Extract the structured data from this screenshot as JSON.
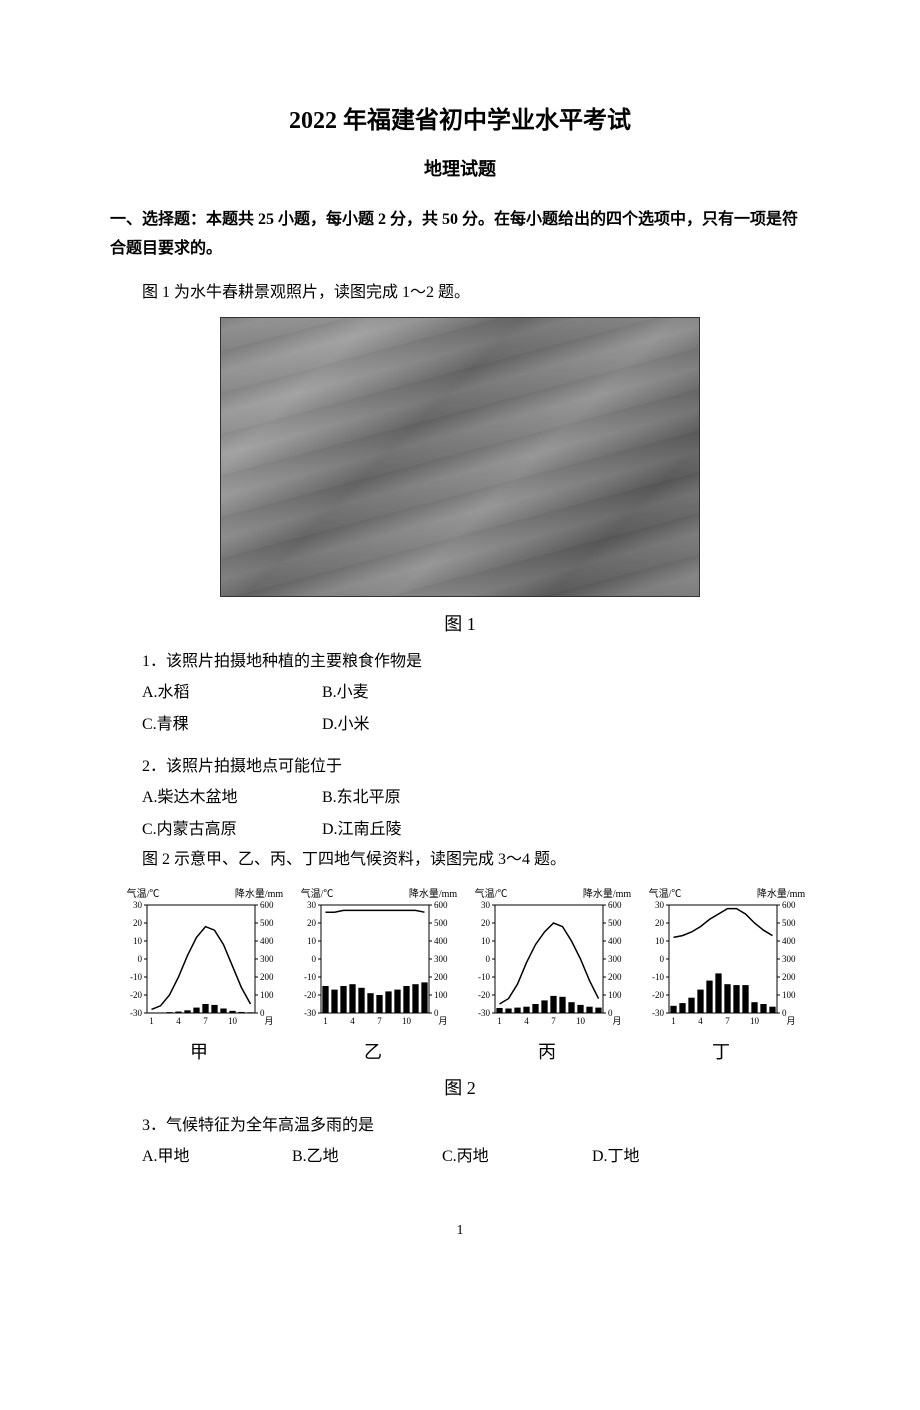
{
  "title": "2022 年福建省初中学业水平考试",
  "subtitle": "地理试题",
  "section_header": "一、选择题：本题共 25 小题，每小题 2 分，共 50 分。在每小题给出的四个选项中，只有一项是符合题目要求的。",
  "intro1": "图 1 为水牛春耕景观照片，读图完成 1～2 题。",
  "figure1_caption": "图 1",
  "q1": {
    "text": "1．该照片拍摄地种植的主要粮食作物是",
    "a": "A.水稻",
    "b": "B.小麦",
    "c": "C.青稞",
    "d": "D.小米"
  },
  "q2": {
    "text": "2．该照片拍摄地点可能位于",
    "a": "A.柴达木盆地",
    "b": "B.东北平原",
    "c": "C.内蒙古高原",
    "d": "D.江南丘陵"
  },
  "intro2": "图 2 示意甲、乙、丙、丁四地气候资料，读图完成 3～4 题。",
  "charts": {
    "common": {
      "temp_label": "气温/℃",
      "precip_label": "降水量/mm",
      "month_label": "月",
      "temp_ticks": [
        30,
        20,
        10,
        0,
        -10,
        -20,
        -30
      ],
      "precip_ticks": [
        600,
        500,
        400,
        300,
        200,
        100,
        0
      ],
      "month_ticks": [
        1,
        4,
        7,
        10
      ],
      "line_color": "#000000",
      "bar_color": "#000000",
      "bg_color": "#ffffff"
    },
    "jia": {
      "label": "甲",
      "temp": [
        -28,
        -26,
        -20,
        -10,
        2,
        12,
        18,
        16,
        8,
        -4,
        -16,
        -25
      ],
      "precip": [
        3,
        3,
        5,
        8,
        15,
        30,
        50,
        45,
        25,
        12,
        6,
        4
      ]
    },
    "yi": {
      "label": "乙",
      "temp": [
        26,
        26,
        27,
        27,
        27,
        27,
        27,
        27,
        27,
        27,
        27,
        26
      ],
      "precip": [
        150,
        130,
        150,
        160,
        140,
        110,
        100,
        120,
        130,
        150,
        160,
        170
      ]
    },
    "bing": {
      "label": "丙",
      "temp": [
        -25,
        -22,
        -14,
        -2,
        8,
        15,
        20,
        18,
        10,
        0,
        -12,
        -22
      ],
      "precip": [
        28,
        25,
        30,
        35,
        50,
        70,
        95,
        90,
        60,
        45,
        35,
        30
      ]
    },
    "ding": {
      "label": "丁",
      "temp": [
        12,
        13,
        15,
        18,
        22,
        25,
        28,
        28,
        25,
        20,
        16,
        13
      ],
      "precip": [
        40,
        55,
        85,
        130,
        180,
        220,
        160,
        155,
        155,
        60,
        50,
        35
      ]
    }
  },
  "figure2_caption": "图 2",
  "q3": {
    "text": "3．气候特征为全年高温多雨的是",
    "a": "A.甲地",
    "b": "B.乙地",
    "c": "C.丙地",
    "d": "D.丁地"
  },
  "page_number": "1"
}
